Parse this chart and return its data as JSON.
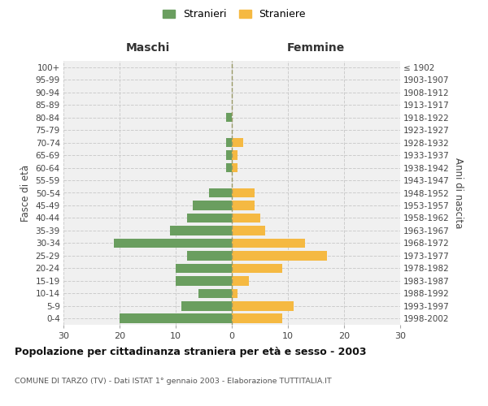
{
  "age_groups": [
    "0-4",
    "5-9",
    "10-14",
    "15-19",
    "20-24",
    "25-29",
    "30-34",
    "35-39",
    "40-44",
    "45-49",
    "50-54",
    "55-59",
    "60-64",
    "65-69",
    "70-74",
    "75-79",
    "80-84",
    "85-89",
    "90-94",
    "95-99",
    "100+"
  ],
  "birth_years": [
    "1998-2002",
    "1993-1997",
    "1988-1992",
    "1983-1987",
    "1978-1982",
    "1973-1977",
    "1968-1972",
    "1963-1967",
    "1958-1962",
    "1953-1957",
    "1948-1952",
    "1943-1947",
    "1938-1942",
    "1933-1937",
    "1928-1932",
    "1923-1927",
    "1918-1922",
    "1913-1917",
    "1908-1912",
    "1903-1907",
    "≤ 1902"
  ],
  "males": [
    20,
    9,
    6,
    10,
    10,
    8,
    21,
    11,
    8,
    7,
    4,
    0,
    1,
    1,
    1,
    0,
    1,
    0,
    0,
    0,
    0
  ],
  "females": [
    9,
    11,
    1,
    3,
    9,
    17,
    13,
    6,
    5,
    4,
    4,
    0,
    1,
    1,
    2,
    0,
    0,
    0,
    0,
    0,
    0
  ],
  "male_color": "#6a9e5f",
  "female_color": "#f5b942",
  "grid_color": "#cccccc",
  "bg_color": "#f0f0f0",
  "title": "Popolazione per cittadinanza straniera per età e sesso - 2003",
  "subtitle": "COMUNE DI TARZO (TV) - Dati ISTAT 1° gennaio 2003 - Elaborazione TUTTITALIA.IT",
  "ylabel_left": "Fasce di età",
  "ylabel_right": "Anni di nascita",
  "xlabel_left": "Maschi",
  "xlabel_right": "Femmine",
  "legend_male": "Stranieri",
  "legend_female": "Straniere",
  "xlim": 30
}
